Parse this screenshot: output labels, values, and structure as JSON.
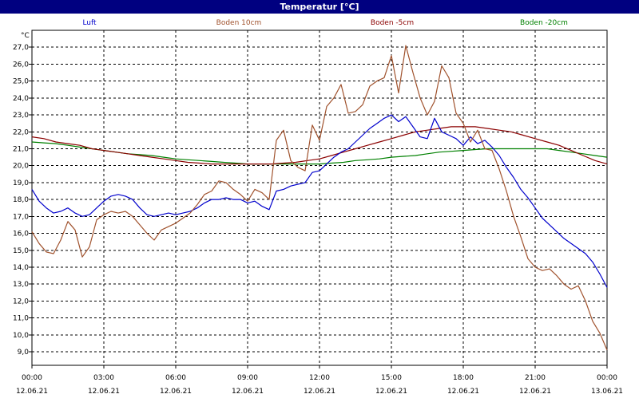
{
  "title": "Temperatur [°C]",
  "chart_data": {
    "type": "line",
    "ylabel": "°C",
    "ylim": [
      8.2,
      28.0
    ],
    "yticks": [
      "9,0",
      "10,0",
      "11,0",
      "12,0",
      "13,0",
      "14,0",
      "15,0",
      "16,0",
      "17,0",
      "18,0",
      "19,0",
      "20,0",
      "21,0",
      "22,0",
      "23,0",
      "24,0",
      "25,0",
      "26,0",
      "27,0"
    ],
    "xlim": [
      0,
      24
    ],
    "xtick_times": [
      "00:00",
      "03:00",
      "06:00",
      "09:00",
      "12:00",
      "15:00",
      "18:00",
      "21:00",
      "00:00"
    ],
    "xtick_dates": [
      "12.06.21",
      "12.06.21",
      "12.06.21",
      "12.06.21",
      "12.06.21",
      "12.06.21",
      "12.06.21",
      "12.06.21",
      "13.06.21"
    ],
    "grid": true,
    "legend_placement": "top",
    "series": [
      {
        "name": "Luft",
        "color": "#0000cc",
        "x": [
          0,
          0.3,
          0.6,
          0.9,
          1.2,
          1.5,
          1.8,
          2.1,
          2.4,
          2.7,
          3.0,
          3.3,
          3.6,
          3.9,
          4.2,
          4.5,
          4.8,
          5.1,
          5.4,
          5.7,
          6.0,
          6.3,
          6.6,
          6.9,
          7.2,
          7.5,
          7.8,
          8.1,
          8.4,
          8.7,
          9.0,
          9.3,
          9.6,
          9.9,
          10.2,
          10.5,
          10.8,
          11.1,
          11.4,
          11.7,
          12.0,
          12.3,
          12.6,
          12.9,
          13.2,
          13.5,
          13.8,
          14.1,
          14.4,
          14.7,
          15.0,
          15.3,
          15.6,
          15.9,
          16.2,
          16.5,
          16.8,
          17.1,
          17.4,
          17.7,
          18.0,
          18.3,
          18.6,
          18.9,
          19.2,
          19.5,
          19.8,
          20.1,
          20.4,
          20.7,
          21.0,
          21.3,
          21.6,
          21.9,
          22.2,
          22.5,
          22.8,
          23.1,
          23.4,
          23.7,
          24.0
        ],
        "values": [
          18.6,
          17.9,
          17.5,
          17.2,
          17.3,
          17.5,
          17.2,
          17.0,
          17.1,
          17.5,
          17.9,
          18.2,
          18.3,
          18.2,
          18.0,
          17.5,
          17.1,
          17.0,
          17.1,
          17.2,
          17.1,
          17.2,
          17.3,
          17.5,
          17.8,
          18.0,
          18.0,
          18.1,
          18.0,
          18.0,
          17.8,
          17.9,
          17.6,
          17.4,
          18.5,
          18.6,
          18.8,
          18.9,
          19.0,
          19.6,
          19.7,
          20.1,
          20.5,
          20.8,
          21.0,
          21.4,
          21.8,
          22.2,
          22.5,
          22.8,
          23.0,
          22.6,
          22.9,
          22.3,
          21.7,
          21.6,
          22.8,
          22.0,
          21.8,
          21.6,
          21.2,
          21.7,
          21.3,
          21.5,
          21.1,
          20.6,
          19.9,
          19.3,
          18.6,
          18.1,
          17.5,
          16.9,
          16.5,
          16.1,
          15.7,
          15.4,
          15.1,
          14.8,
          14.3,
          13.6,
          12.8
        ]
      },
      {
        "name": "Boden 10cm",
        "color": "#a0522d",
        "x": [
          0,
          0.3,
          0.6,
          0.9,
          1.2,
          1.5,
          1.8,
          2.1,
          2.4,
          2.7,
          3.0,
          3.3,
          3.6,
          3.9,
          4.2,
          4.5,
          4.8,
          5.1,
          5.4,
          5.7,
          6.0,
          6.3,
          6.6,
          6.9,
          7.2,
          7.5,
          7.8,
          8.1,
          8.4,
          8.7,
          9.0,
          9.3,
          9.6,
          9.9,
          10.2,
          10.5,
          10.8,
          11.1,
          11.4,
          11.7,
          12.0,
          12.3,
          12.6,
          12.9,
          13.2,
          13.5,
          13.8,
          14.1,
          14.4,
          14.7,
          15.0,
          15.3,
          15.6,
          15.9,
          16.2,
          16.5,
          16.8,
          17.1,
          17.4,
          17.7,
          18.0,
          18.3,
          18.6,
          18.9,
          19.2,
          19.5,
          19.8,
          20.1,
          20.4,
          20.7,
          21.0,
          21.3,
          21.6,
          21.9,
          22.2,
          22.5,
          22.8,
          23.1,
          23.4,
          23.7,
          24.0
        ],
        "values": [
          16.1,
          15.4,
          14.9,
          14.8,
          15.6,
          16.7,
          16.2,
          14.6,
          15.2,
          16.8,
          17.1,
          17.3,
          17.2,
          17.3,
          17.0,
          16.5,
          16.0,
          15.6,
          16.2,
          16.4,
          16.6,
          16.9,
          17.2,
          17.7,
          18.3,
          18.5,
          19.1,
          19.0,
          18.6,
          18.3,
          17.9,
          18.6,
          18.4,
          18.0,
          21.5,
          22.1,
          20.3,
          19.9,
          19.7,
          22.4,
          21.5,
          23.5,
          24.0,
          24.8,
          23.1,
          23.2,
          23.6,
          24.7,
          25.0,
          25.2,
          26.5,
          24.3,
          27.1,
          25.5,
          24.0,
          23.0,
          23.8,
          25.9,
          25.2,
          23.1,
          22.5,
          21.4,
          22.1,
          21.0,
          20.9,
          19.8,
          18.5,
          17.0,
          15.8,
          14.5,
          14.0,
          13.8,
          13.9,
          13.5,
          13.0,
          12.7,
          12.9,
          12.0,
          10.8,
          10.1,
          9.1
        ]
      },
      {
        "name": "Boden -5cm",
        "color": "#8b0000",
        "x": [
          0,
          0.5,
          1,
          1.5,
          2,
          2.5,
          3,
          3.5,
          4,
          4.5,
          5,
          5.5,
          6,
          6.5,
          7,
          7.5,
          8,
          8.5,
          9,
          9.5,
          10,
          10.5,
          11,
          11.5,
          12,
          12.5,
          13,
          13.5,
          14,
          14.5,
          15,
          15.5,
          16,
          16.5,
          17,
          17.5,
          18,
          18.5,
          19,
          19.5,
          20,
          20.5,
          21,
          21.5,
          22,
          22.5,
          23,
          23.5,
          24
        ],
        "values": [
          21.7,
          21.6,
          21.4,
          21.3,
          21.2,
          21.0,
          20.9,
          20.8,
          20.7,
          20.6,
          20.5,
          20.4,
          20.3,
          20.2,
          20.15,
          20.1,
          20.1,
          20.1,
          20.1,
          20.1,
          20.1,
          20.15,
          20.2,
          20.3,
          20.4,
          20.6,
          20.8,
          21.0,
          21.2,
          21.4,
          21.6,
          21.8,
          22.0,
          22.1,
          22.2,
          22.3,
          22.3,
          22.3,
          22.2,
          22.1,
          22.0,
          21.8,
          21.6,
          21.4,
          21.2,
          20.9,
          20.6,
          20.3,
          20.1
        ]
      },
      {
        "name": "Boden -20cm",
        "color": "#008000",
        "x": [
          0,
          0.5,
          1,
          1.5,
          2,
          2.5,
          3,
          3.5,
          4,
          4.5,
          5,
          5.5,
          6,
          6.5,
          7,
          7.5,
          8,
          8.5,
          9,
          9.5,
          10,
          10.5,
          11,
          11.5,
          12,
          12.5,
          13,
          13.5,
          14,
          14.5,
          15,
          15.5,
          16,
          16.5,
          17,
          17.5,
          18,
          18.5,
          19,
          19.5,
          20,
          20.5,
          21,
          21.5,
          22,
          22.5,
          23,
          23.5,
          24
        ],
        "values": [
          21.4,
          21.35,
          21.3,
          21.2,
          21.1,
          21.0,
          20.9,
          20.8,
          20.7,
          20.65,
          20.6,
          20.5,
          20.4,
          20.35,
          20.3,
          20.25,
          20.2,
          20.15,
          20.1,
          20.1,
          20.1,
          20.1,
          20.1,
          20.1,
          20.1,
          20.15,
          20.2,
          20.3,
          20.35,
          20.4,
          20.5,
          20.55,
          20.6,
          20.7,
          20.8,
          20.85,
          20.9,
          20.95,
          21.0,
          21.0,
          21.0,
          21.0,
          21.0,
          21.0,
          20.9,
          20.8,
          20.7,
          20.6,
          20.5
        ]
      }
    ]
  }
}
